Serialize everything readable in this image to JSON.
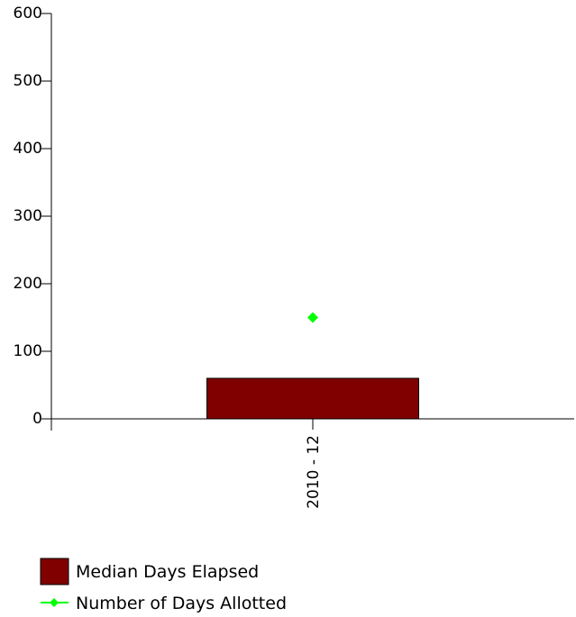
{
  "chart_data": {
    "type": "bar",
    "categories": [
      "2010 - 12"
    ],
    "series": [
      {
        "name": "Median Days Elapsed",
        "kind": "bar",
        "color": "#800000",
        "values": [
          60
        ]
      },
      {
        "name": "Number of Days Allotted",
        "kind": "scatter",
        "marker": "diamond",
        "color": "#00ff00",
        "values": [
          150
        ]
      }
    ],
    "title": "",
    "xlabel": "",
    "ylabel": "",
    "ylim": [
      0,
      600
    ],
    "yticks": [
      0,
      100,
      200,
      300,
      400,
      500,
      600
    ],
    "grid": false,
    "legend_position": "bottom-left"
  }
}
